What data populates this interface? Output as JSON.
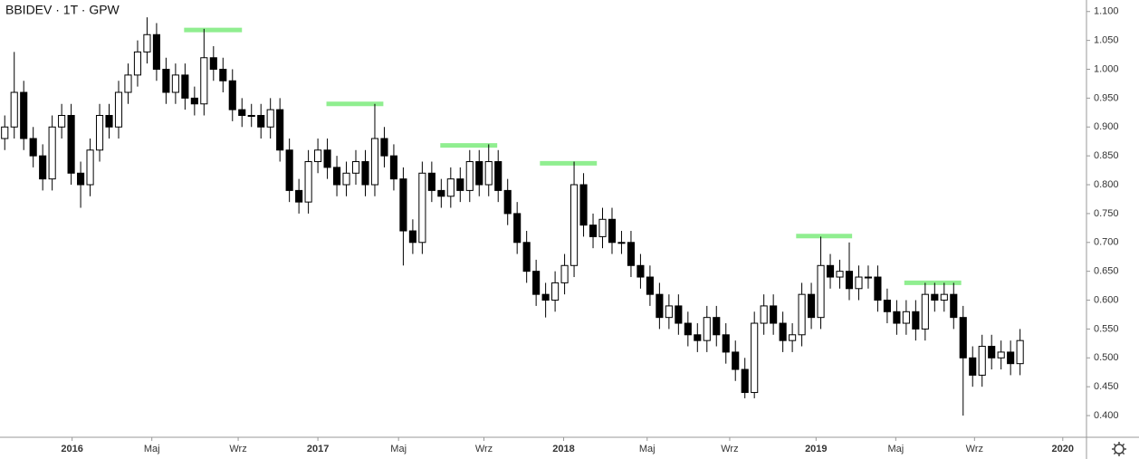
{
  "chart_data": {
    "type": "candlestick",
    "title": "BBIDEV · 1T · GPW",
    "categories": [
      null,
      null,
      null,
      null,
      null,
      null,
      null,
      null,
      null,
      null,
      null,
      null,
      null,
      null,
      null,
      null,
      null,
      null,
      null,
      null,
      null,
      null,
      null,
      null,
      null,
      null,
      null,
      null,
      null,
      null,
      null,
      null,
      null,
      null,
      null,
      null,
      null,
      null,
      null,
      null,
      null,
      null,
      null,
      null,
      null,
      null,
      null,
      null,
      null,
      null,
      null,
      null,
      null,
      null,
      null,
      null,
      null,
      null,
      null,
      null,
      null,
      null,
      null,
      null,
      null,
      null,
      null,
      null,
      null,
      null,
      null,
      null,
      null,
      null,
      null,
      null,
      null,
      null,
      null,
      null,
      null,
      null,
      null,
      null,
      null,
      null,
      null,
      null,
      null,
      null,
      null,
      null,
      null,
      null,
      null,
      null,
      null,
      null,
      null,
      null,
      null,
      null,
      null,
      null,
      null,
      null,
      null,
      null
    ],
    "open": [
      0.88,
      0.9,
      0.96,
      0.88,
      0.85,
      0.81,
      0.9,
      0.92,
      0.82,
      0.8,
      0.86,
      0.92,
      0.9,
      0.96,
      0.99,
      1.03,
      1.06,
      1.0,
      0.96,
      0.99,
      0.95,
      0.94,
      1.02,
      1.0,
      0.98,
      0.93,
      0.92,
      0.92,
      0.9,
      0.93,
      0.86,
      0.79,
      0.77,
      0.84,
      0.86,
      0.83,
      0.8,
      0.82,
      0.84,
      0.8,
      0.88,
      0.85,
      0.81,
      0.72,
      0.7,
      0.82,
      0.79,
      0.78,
      0.81,
      0.79,
      0.84,
      0.8,
      0.84,
      0.79,
      0.75,
      0.7,
      0.65,
      0.61,
      0.6,
      0.63,
      0.66,
      0.8,
      0.73,
      0.71,
      0.74,
      0.7,
      0.7,
      0.66,
      0.64,
      0.61,
      0.57,
      0.59,
      0.56,
      0.54,
      0.53,
      0.57,
      0.54,
      0.51,
      0.48,
      0.44,
      0.56,
      0.59,
      0.56,
      0.53,
      0.54,
      0.61,
      0.57,
      0.66,
      0.64,
      0.65,
      0.62,
      0.64,
      0.64,
      0.6,
      0.58,
      0.56,
      0.58,
      0.55,
      0.61,
      0.6,
      0.61,
      0.57,
      0.5,
      0.47,
      0.52,
      0.5,
      0.51,
      0.49
    ],
    "high": [
      0.92,
      1.03,
      0.98,
      0.9,
      0.87,
      0.92,
      0.94,
      0.94,
      0.84,
      0.88,
      0.94,
      0.94,
      0.98,
      1.01,
      1.05,
      1.09,
      1.08,
      1.02,
      1.01,
      1.01,
      0.97,
      1.07,
      1.04,
      1.02,
      1.0,
      0.95,
      0.94,
      0.94,
      0.95,
      0.95,
      0.88,
      0.81,
      0.86,
      0.88,
      0.88,
      0.85,
      0.84,
      0.86,
      0.86,
      0.94,
      0.9,
      0.87,
      0.83,
      0.74,
      0.84,
      0.84,
      0.81,
      0.83,
      0.83,
      0.86,
      0.86,
      0.87,
      0.86,
      0.81,
      0.77,
      0.72,
      0.67,
      0.63,
      0.65,
      0.68,
      0.84,
      0.82,
      0.75,
      0.76,
      0.76,
      0.72,
      0.72,
      0.68,
      0.66,
      0.63,
      0.61,
      0.61,
      0.58,
      0.56,
      0.59,
      0.59,
      0.56,
      0.53,
      0.5,
      0.58,
      0.61,
      0.61,
      0.58,
      0.56,
      0.63,
      0.63,
      0.71,
      0.68,
      0.67,
      0.7,
      0.66,
      0.66,
      0.66,
      0.62,
      0.6,
      0.6,
      0.6,
      0.63,
      0.63,
      0.63,
      0.63,
      0.59,
      0.52,
      0.54,
      0.54,
      0.53,
      0.53,
      0.55
    ],
    "low": [
      0.86,
      0.88,
      0.86,
      0.83,
      0.79,
      0.79,
      0.88,
      0.8,
      0.76,
      0.78,
      0.84,
      0.88,
      0.88,
      0.94,
      0.97,
      1.01,
      0.98,
      0.94,
      0.94,
      0.93,
      0.92,
      0.92,
      0.98,
      0.96,
      0.91,
      0.9,
      0.9,
      0.88,
      0.88,
      0.84,
      0.77,
      0.75,
      0.75,
      0.82,
      0.81,
      0.78,
      0.78,
      0.8,
      0.78,
      0.78,
      0.83,
      0.79,
      0.66,
      0.68,
      0.68,
      0.77,
      0.76,
      0.76,
      0.77,
      0.77,
      0.78,
      0.78,
      0.77,
      0.73,
      0.68,
      0.63,
      0.59,
      0.57,
      0.58,
      0.61,
      0.64,
      0.71,
      0.69,
      0.69,
      0.68,
      0.68,
      0.64,
      0.62,
      0.59,
      0.55,
      0.55,
      0.54,
      0.52,
      0.51,
      0.51,
      0.52,
      0.49,
      0.46,
      0.43,
      0.43,
      0.54,
      0.54,
      0.51,
      0.51,
      0.52,
      0.55,
      0.55,
      0.62,
      0.62,
      0.6,
      0.6,
      0.62,
      0.58,
      0.56,
      0.54,
      0.54,
      0.53,
      0.53,
      0.58,
      0.58,
      0.55,
      0.4,
      0.45,
      0.45,
      0.48,
      0.48,
      0.47,
      0.47
    ],
    "close": [
      0.9,
      0.96,
      0.88,
      0.85,
      0.81,
      0.9,
      0.92,
      0.82,
      0.8,
      0.86,
      0.92,
      0.9,
      0.96,
      0.99,
      1.03,
      1.06,
      1.0,
      0.96,
      0.99,
      0.95,
      0.94,
      1.02,
      1.0,
      0.98,
      0.93,
      0.92,
      0.92,
      0.9,
      0.93,
      0.86,
      0.79,
      0.77,
      0.84,
      0.86,
      0.83,
      0.8,
      0.82,
      0.84,
      0.8,
      0.88,
      0.85,
      0.81,
      0.72,
      0.7,
      0.82,
      0.79,
      0.78,
      0.81,
      0.79,
      0.84,
      0.8,
      0.84,
      0.79,
      0.75,
      0.7,
      0.65,
      0.61,
      0.6,
      0.63,
      0.66,
      0.8,
      0.73,
      0.71,
      0.74,
      0.7,
      0.7,
      0.66,
      0.64,
      0.61,
      0.57,
      0.59,
      0.56,
      0.54,
      0.53,
      0.57,
      0.54,
      0.51,
      0.48,
      0.44,
      0.56,
      0.59,
      0.56,
      0.53,
      0.54,
      0.61,
      0.57,
      0.66,
      0.64,
      0.65,
      0.62,
      0.64,
      0.64,
      0.6,
      0.58,
      0.56,
      0.58,
      0.55,
      0.61,
      0.6,
      0.61,
      0.57,
      0.5,
      0.47,
      0.52,
      0.5,
      0.51,
      0.49,
      0.53
    ],
    "up_color": "#ffffff",
    "down_color": "#000000",
    "wick_color": "#000000",
    "levels": [
      {
        "value": 1.068,
        "x": [
          19.4,
          25.5
        ]
      },
      {
        "value": 0.94,
        "x": [
          34.4,
          40.4
        ]
      },
      {
        "value": 0.868,
        "x": [
          46.4,
          52.4
        ]
      },
      {
        "value": 0.837,
        "x": [
          56.9,
          62.9
        ]
      },
      {
        "value": 0.711,
        "x": [
          83.9,
          89.8
        ]
      },
      {
        "value": 0.63,
        "x": [
          95.3,
          101.3
        ]
      }
    ],
    "level_color": "#90ee90",
    "xlim": [
      0,
      114.5
    ],
    "xticks": [
      {
        "value": 7.6,
        "label": "2016"
      },
      {
        "value": 16.0,
        "label": "Maj"
      },
      {
        "value": 25.1,
        "label": "Wrz"
      },
      {
        "value": 33.5,
        "label": "2017"
      },
      {
        "value": 42.0,
        "label": "Maj"
      },
      {
        "value": 51.0,
        "label": "Wrz"
      },
      {
        "value": 59.4,
        "label": "2018"
      },
      {
        "value": 68.2,
        "label": "Maj"
      },
      {
        "value": 76.9,
        "label": "Wrz"
      },
      {
        "value": 86.0,
        "label": "2019"
      },
      {
        "value": 94.4,
        "label": "Maj"
      },
      {
        "value": 102.7,
        "label": "Wrz"
      },
      {
        "value": 112.0,
        "label": "2020"
      }
    ],
    "ylim": [
      0.364,
      1.12
    ],
    "yticks": [
      {
        "value": 0.4,
        "label": "0.400"
      },
      {
        "value": 0.45,
        "label": "0.450"
      },
      {
        "value": 0.5,
        "label": "0.500"
      },
      {
        "value": 0.55,
        "label": "0.550"
      },
      {
        "value": 0.6,
        "label": "0.600"
      },
      {
        "value": 0.65,
        "label": "0.650"
      },
      {
        "value": 0.7,
        "label": "0.700"
      },
      {
        "value": 0.75,
        "label": "0.750"
      },
      {
        "value": 0.8,
        "label": "0.800"
      },
      {
        "value": 0.85,
        "label": "0.850"
      },
      {
        "value": 0.9,
        "label": "0.900"
      },
      {
        "value": 0.95,
        "label": "0.950"
      },
      {
        "value": 1.0,
        "label": "1.000"
      },
      {
        "value": 1.05,
        "label": "1.050"
      },
      {
        "value": 1.1,
        "label": "1.100"
      }
    ],
    "grid": false
  }
}
